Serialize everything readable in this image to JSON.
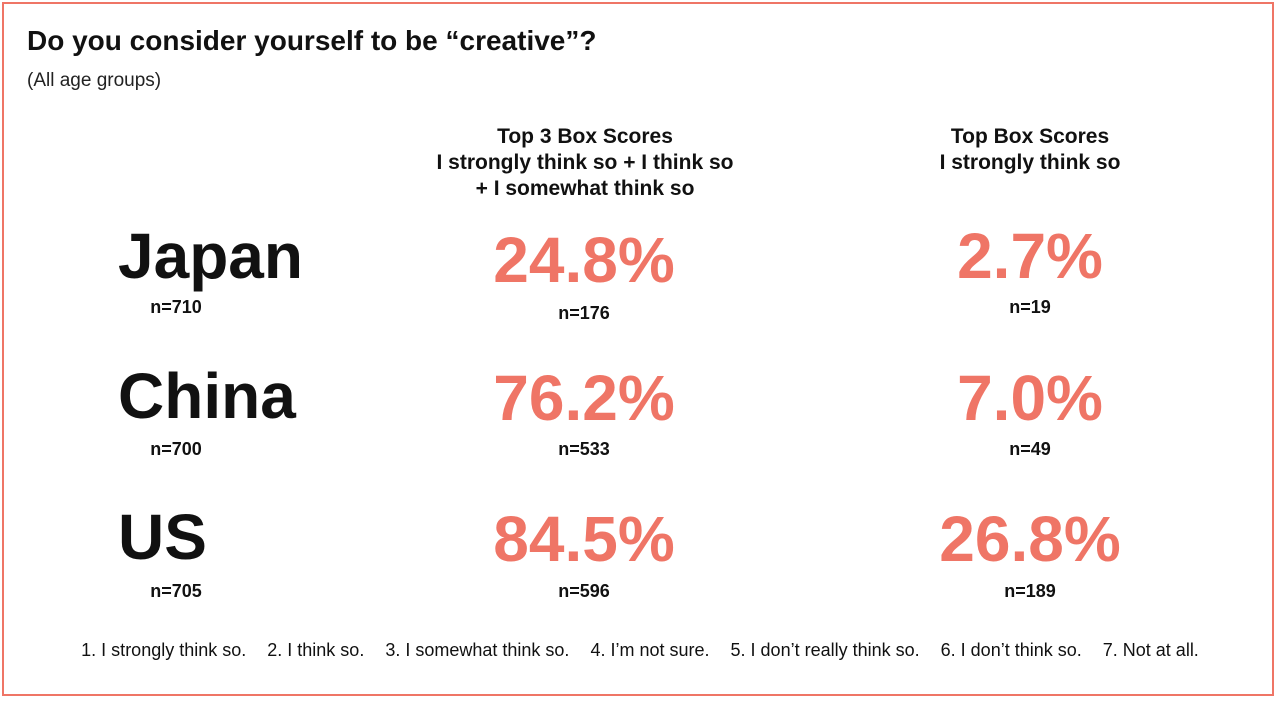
{
  "title": "Do you consider yourself to be “creative”?",
  "subtitle": "(All age groups)",
  "columns": {
    "top3": [
      "Top 3 Box Scores",
      "I strongly think so + I think so",
      "+ I somewhat think so"
    ],
    "topbox": [
      "Top Box Scores",
      "I strongly think so"
    ]
  },
  "accent_color": "#ef7566",
  "chart_data": {
    "type": "table",
    "title": "Do you consider yourself to be “creative”?",
    "subtitle": "(All age groups)",
    "columns": [
      "Top 3 Box Scores",
      "Top Box Scores"
    ],
    "rows": [
      {
        "country": "Japan",
        "n": "n=710",
        "top3_pct": "24.8%",
        "top3_n": "n=176",
        "topbox_pct": "2.7%",
        "topbox_n": "n=19"
      },
      {
        "country": "China",
        "n": "n=700",
        "top3_pct": "76.2%",
        "top3_n": "n=533",
        "topbox_pct": "7.0%",
        "topbox_n": "n=49"
      },
      {
        "country": "US",
        "n": "n=705",
        "top3_pct": "84.5%",
        "top3_n": "n=596",
        "topbox_pct": "26.8%",
        "topbox_n": "n=189"
      }
    ],
    "values": {
      "top3": [
        24.8,
        76.2,
        84.5
      ],
      "topbox": [
        2.7,
        7.0,
        26.8
      ]
    }
  },
  "scale_items": [
    "1. I strongly think so.",
    "2. I think so.",
    "3. I somewhat think so.",
    "4.  I’m not sure.",
    "5. I don’t really think so.",
    "6. I don’t think so.",
    "7. Not at all."
  ]
}
